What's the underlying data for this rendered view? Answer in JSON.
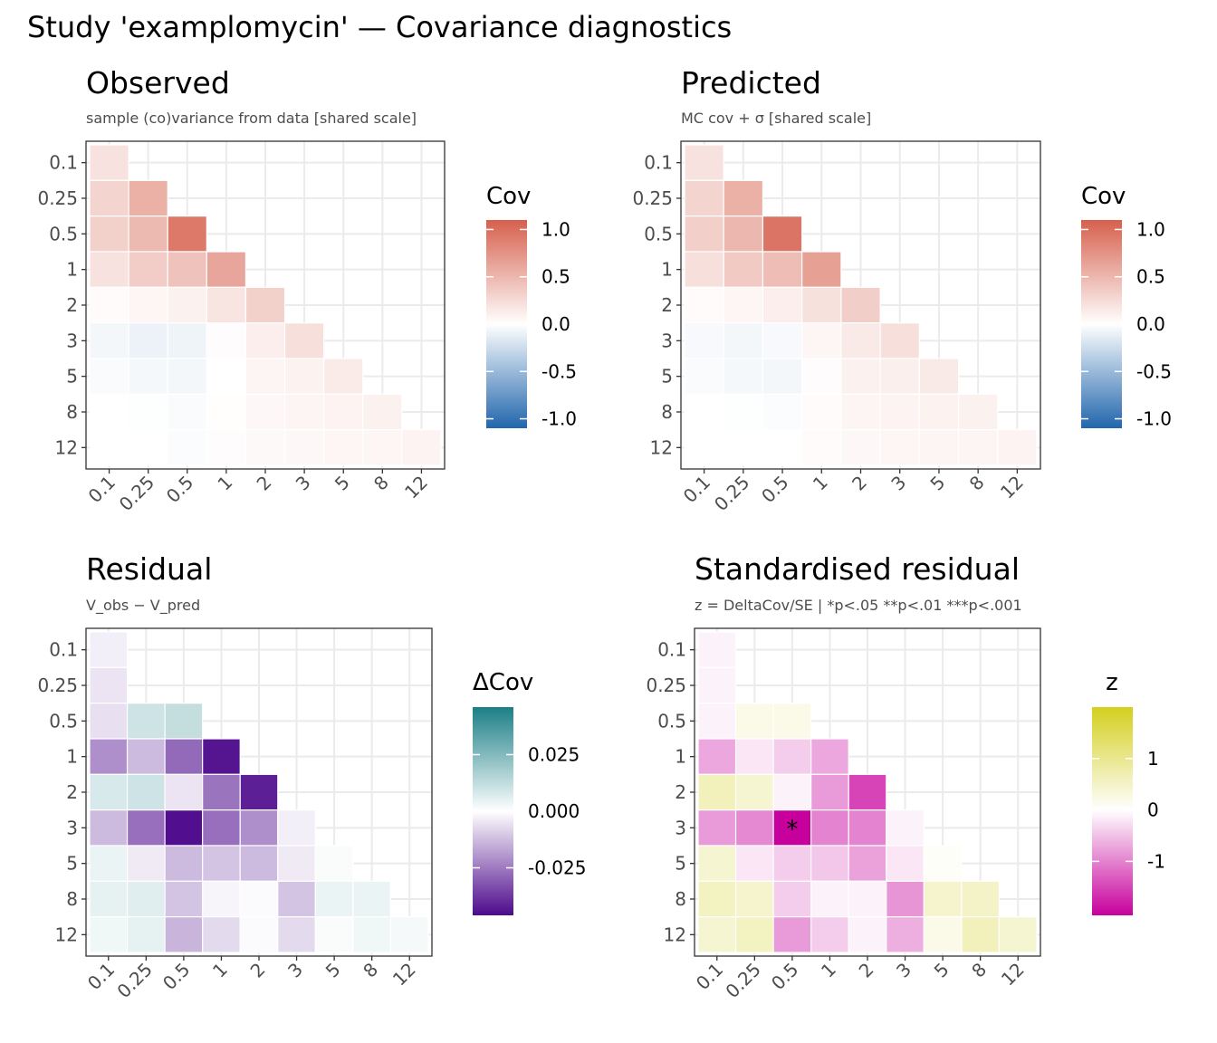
{
  "title": "Study 'examplomycin'  —  Covariance diagnostics",
  "chart_data": [
    {
      "type": "heatmap",
      "title": "Observed",
      "subtitle": "sample (co)variance from data  [shared scale]",
      "categories": [
        "0.1",
        "0.25",
        "0.5",
        "1",
        "2",
        "3",
        "5",
        "8",
        "12"
      ],
      "legend": {
        "title": "Cov",
        "ticks": [
          "1.0",
          "0.5",
          "0.0",
          "-0.5",
          "-1.0"
        ],
        "tick_values": [
          1.0,
          0.5,
          0.0,
          -0.5,
          -1.0
        ],
        "range": [
          -1.1,
          1.1
        ]
      },
      "colormap": {
        "low": "#2166ac",
        "mid": "#ffffff",
        "high": "#d6604d"
      },
      "values": [
        [
          0.2
        ],
        [
          0.3,
          0.55
        ],
        [
          0.32,
          0.48,
          0.93
        ],
        [
          0.2,
          0.35,
          0.42,
          0.62
        ],
        [
          0.03,
          0.06,
          0.1,
          0.18,
          0.32
        ],
        [
          -0.06,
          -0.09,
          -0.08,
          0.02,
          0.12,
          0.22
        ],
        [
          -0.03,
          -0.05,
          -0.06,
          0.0,
          0.07,
          0.09,
          0.14
        ],
        [
          0.0,
          -0.01,
          -0.03,
          0.01,
          0.05,
          0.07,
          0.08,
          0.1
        ],
        [
          0.0,
          0.0,
          -0.02,
          0.02,
          0.04,
          0.05,
          0.06,
          0.06,
          0.08
        ]
      ]
    },
    {
      "type": "heatmap",
      "title": "Predicted",
      "subtitle": "MC cov + σ  [shared scale]",
      "categories": [
        "0.1",
        "0.25",
        "0.5",
        "1",
        "2",
        "3",
        "5",
        "8",
        "12"
      ],
      "legend": {
        "title": "Cov",
        "ticks": [
          "1.0",
          "0.5",
          "0.0",
          "-0.5",
          "-1.0"
        ],
        "tick_values": [
          1.0,
          0.5,
          0.0,
          -0.5,
          -1.0
        ],
        "range": [
          -1.1,
          1.1
        ]
      },
      "colormap": {
        "low": "#2166ac",
        "mid": "#ffffff",
        "high": "#d6604d"
      },
      "values": [
        [
          0.2
        ],
        [
          0.3,
          0.55
        ],
        [
          0.33,
          0.5,
          0.96
        ],
        [
          0.22,
          0.37,
          0.46,
          0.66
        ],
        [
          0.03,
          0.06,
          0.12,
          0.21,
          0.34
        ],
        [
          -0.04,
          -0.06,
          -0.04,
          0.06,
          0.15,
          0.22
        ],
        [
          -0.03,
          -0.05,
          -0.06,
          0.02,
          0.1,
          0.11,
          0.15
        ],
        [
          0.0,
          -0.01,
          -0.02,
          0.03,
          0.07,
          0.08,
          0.09,
          0.1
        ],
        [
          0.0,
          0.0,
          0.0,
          0.03,
          0.05,
          0.06,
          0.07,
          0.07,
          0.08
        ]
      ]
    },
    {
      "type": "heatmap",
      "title": "Residual",
      "subtitle": "V_obs − V_pred",
      "categories": [
        "0.1",
        "0.25",
        "0.5",
        "1",
        "2",
        "3",
        "5",
        "8",
        "12"
      ],
      "legend": {
        "title": "ΔCov",
        "ticks": [
          "0.025",
          "0.000",
          "-0.025"
        ],
        "tick_values": [
          0.025,
          0.0,
          -0.025
        ],
        "range": [
          -0.046,
          0.046
        ]
      },
      "colormap": {
        "low": "#4d0a8c",
        "mid": "#ffffff",
        "high": "#1b7f86"
      },
      "values": [
        [
          -0.003
        ],
        [
          -0.005,
          null
        ],
        [
          -0.006,
          0.01,
          0.012
        ],
        [
          -0.021,
          -0.013,
          -0.028,
          -0.044
        ],
        [
          0.008,
          0.01,
          -0.005,
          -0.026,
          -0.042
        ],
        [
          -0.013,
          -0.027,
          -0.045,
          -0.027,
          -0.021,
          -0.003
        ],
        [
          0.004,
          -0.004,
          -0.013,
          -0.011,
          -0.013,
          -0.004,
          0.001
        ],
        [
          0.005,
          0.006,
          -0.011,
          -0.002,
          -0.001,
          -0.011,
          0.004,
          0.004
        ],
        [
          0.003,
          0.005,
          -0.014,
          -0.007,
          -0.001,
          -0.007,
          0.001,
          0.003,
          0.002
        ]
      ]
    },
    {
      "type": "heatmap",
      "title": "Standardised residual",
      "subtitle": "z = DeltaCov/SE  |  *p<.05 **p<.01 ***p<.001",
      "categories": [
        "0.1",
        "0.25",
        "0.5",
        "1",
        "2",
        "3",
        "5",
        "8",
        "12"
      ],
      "legend": {
        "title": "z",
        "ticks": [
          "1",
          "0",
          "-1"
        ],
        "tick_values": [
          1,
          0,
          -1
        ],
        "range": [
          -2.05,
          2.0
        ]
      },
      "colormap": {
        "low": "#c7009d",
        "mid": "#ffffff",
        "high": "#d4cf1e"
      },
      "annotations": [
        {
          "row": "3",
          "col": "0.5",
          "text": "*"
        }
      ],
      "values": [
        [
          -0.1
        ],
        [
          -0.1,
          null
        ],
        [
          -0.1,
          0.2,
          0.2
        ],
        [
          -0.7,
          -0.2,
          -0.4,
          -0.7
        ],
        [
          0.6,
          0.4,
          -0.1,
          -0.8,
          -1.5
        ],
        [
          -0.8,
          -0.95,
          -2.05,
          -1.0,
          -1.0,
          -0.1
        ],
        [
          0.4,
          -0.2,
          -0.4,
          -0.45,
          -0.75,
          -0.2,
          0.05
        ],
        [
          0.55,
          0.45,
          -0.4,
          -0.1,
          -0.1,
          -0.85,
          0.45,
          0.5
        ],
        [
          0.4,
          0.55,
          -0.8,
          -0.4,
          -0.1,
          -0.65,
          0.2,
          0.6,
          0.4
        ]
      ]
    }
  ]
}
